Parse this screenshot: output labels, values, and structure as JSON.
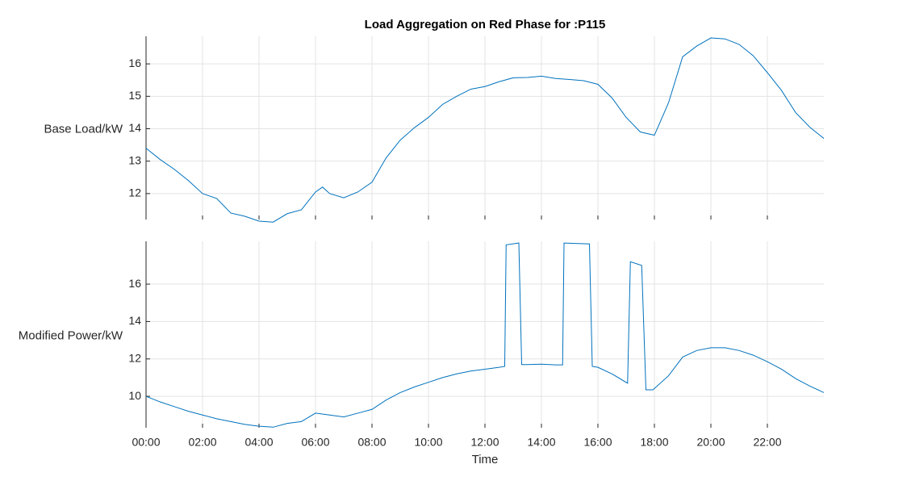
{
  "chart_data": [
    {
      "type": "line",
      "title": "Load Aggregation on Red Phase for :P115",
      "ylabel": "Base Load/kW",
      "x": [
        0,
        0.5,
        1,
        1.5,
        2,
        2.5,
        3,
        3.5,
        4,
        4.5,
        5,
        5.5,
        6,
        6.25,
        6.5,
        7,
        7.5,
        8,
        8.5,
        9,
        9.5,
        10,
        10.5,
        11,
        11.5,
        12,
        12.5,
        13,
        13.5,
        14,
        14.5,
        15,
        15.5,
        16,
        16.5,
        17,
        17.5,
        18,
        18.5,
        19,
        19.5,
        20,
        20.5,
        21,
        21.5,
        22,
        22.5,
        23,
        23.5,
        24
      ],
      "series": [
        {
          "color": "#0072BD",
          "values": [
            13.4,
            13.05,
            12.75,
            12.4,
            12.0,
            11.85,
            11.4,
            11.3,
            11.15,
            11.12,
            11.38,
            11.5,
            12.05,
            12.2,
            12.0,
            11.87,
            12.05,
            12.35,
            13.1,
            13.65,
            14.03,
            14.35,
            14.75,
            15.0,
            15.22,
            15.3,
            15.45,
            15.57,
            15.58,
            15.62,
            15.55,
            15.52,
            15.48,
            15.37,
            14.95,
            14.35,
            13.9,
            13.8,
            14.8,
            16.22,
            16.55,
            16.8,
            16.77,
            16.6,
            16.25,
            15.73,
            15.18,
            14.5,
            14.05,
            13.7
          ]
        }
      ],
      "xlim": [
        0,
        24
      ],
      "xticks": [
        0,
        2,
        4,
        6,
        8,
        10,
        12,
        14,
        16,
        18,
        20,
        22
      ],
      "ylim": [
        11.2,
        16.85
      ],
      "yticks": [
        12,
        13,
        14,
        15,
        16
      ],
      "grid": true
    },
    {
      "type": "line",
      "ylabel": "Modified Power/kW",
      "xlabel": "Time",
      "x": [
        0,
        0.5,
        1,
        1.5,
        2,
        2.5,
        3,
        3.5,
        4,
        4.5,
        5,
        5.5,
        6,
        6.5,
        7,
        7.5,
        8,
        8.5,
        9,
        9.5,
        10,
        10.5,
        11,
        11.5,
        12,
        12.5,
        12.7,
        12.75,
        13.2,
        13.3,
        13.5,
        14,
        14.5,
        14.75,
        14.8,
        15.7,
        15.8,
        16,
        16.5,
        17.05,
        17.15,
        17.55,
        17.7,
        17.95,
        18.5,
        19,
        19.5,
        20,
        20.5,
        21,
        21.5,
        22,
        22.5,
        23,
        23.5,
        24
      ],
      "series": [
        {
          "color": "#0072BD",
          "values": [
            10.0,
            9.7,
            9.45,
            9.2,
            9.0,
            8.8,
            8.65,
            8.5,
            8.4,
            8.35,
            8.55,
            8.65,
            9.1,
            9.0,
            8.9,
            9.1,
            9.3,
            9.8,
            10.2,
            10.5,
            10.75,
            11.0,
            11.2,
            11.35,
            11.45,
            11.55,
            11.6,
            18.1,
            18.2,
            11.7,
            11.7,
            11.72,
            11.68,
            11.68,
            18.2,
            18.15,
            11.6,
            11.55,
            11.2,
            10.7,
            17.2,
            17.0,
            10.35,
            10.35,
            11.1,
            12.1,
            12.45,
            12.6,
            12.6,
            12.45,
            12.2,
            11.85,
            11.45,
            10.95,
            10.55,
            10.2
          ]
        }
      ],
      "xlim": [
        0,
        24
      ],
      "xticks": [
        {
          "value": 0,
          "label": "00:00"
        },
        {
          "value": 2,
          "label": "02:00"
        },
        {
          "value": 4,
          "label": "04:00"
        },
        {
          "value": 6,
          "label": "06:00"
        },
        {
          "value": 8,
          "label": "08:00"
        },
        {
          "value": 10,
          "label": "10:00"
        },
        {
          "value": 12,
          "label": "12:00"
        },
        {
          "value": 14,
          "label": "14:00"
        },
        {
          "value": 16,
          "label": "16:00"
        },
        {
          "value": 18,
          "label": "18:00"
        },
        {
          "value": 20,
          "label": "20:00"
        },
        {
          "value": 22,
          "label": "22:00"
        }
      ],
      "ylim": [
        8.32,
        18.29
      ],
      "yticks": [
        10,
        12,
        14,
        16
      ],
      "grid": true
    }
  ]
}
